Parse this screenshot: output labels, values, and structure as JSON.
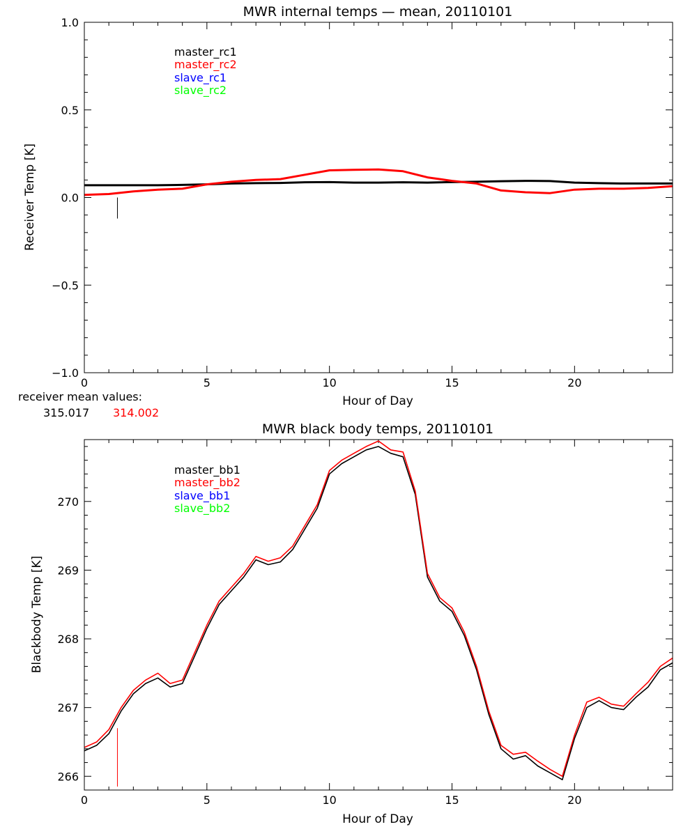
{
  "chart_data": [
    {
      "type": "line",
      "title": "MWR internal temps — mean, 20110101",
      "xlabel": "Hour of Day",
      "ylabel": "Receiver Temp [K]",
      "xlim": [
        0,
        24
      ],
      "ylim": [
        -1.0,
        1.0
      ],
      "xticks": [
        0,
        5,
        10,
        15,
        20
      ],
      "xtick_labels": [
        "0",
        "5",
        "10",
        "15",
        "20"
      ],
      "yticks": [
        -1.0,
        -0.5,
        0.0,
        0.5,
        1.0
      ],
      "ytick_labels": [
        "−1.0",
        "−0.5",
        "0.0",
        "0.5",
        "1.0"
      ],
      "grid": false,
      "legend_position": "top-left",
      "legend": [
        "master_rc1",
        "master_rc2",
        "slave_rc1",
        "slave_rc2"
      ],
      "legend_colors": [
        "#000000",
        "#ff0000",
        "#0000ff",
        "#00ff00"
      ],
      "series": [
        {
          "name": "master_rc1",
          "color": "#000000",
          "x": [
            0,
            1,
            2,
            3,
            4,
            5,
            6,
            7,
            8,
            9,
            10,
            11,
            12,
            13,
            14,
            15,
            16,
            17,
            18,
            19,
            20,
            21,
            22,
            23,
            24
          ],
          "y": [
            0.07,
            0.07,
            0.07,
            0.07,
            0.072,
            0.075,
            0.08,
            0.082,
            0.083,
            0.087,
            0.088,
            0.085,
            0.085,
            0.087,
            0.085,
            0.088,
            0.09,
            0.093,
            0.095,
            0.094,
            0.085,
            0.082,
            0.08,
            0.08,
            0.08
          ]
        },
        {
          "name": "master_rc2",
          "color": "#ff0000",
          "x": [
            0,
            1,
            2,
            3,
            4,
            5,
            6,
            7,
            8,
            9,
            10,
            11,
            12,
            13,
            14,
            15,
            16,
            17,
            18,
            19,
            20,
            21,
            22,
            23,
            24
          ],
          "y": [
            0.015,
            0.02,
            0.035,
            0.045,
            0.05,
            0.075,
            0.09,
            0.1,
            0.105,
            0.13,
            0.155,
            0.158,
            0.16,
            0.15,
            0.115,
            0.095,
            0.08,
            0.04,
            0.03,
            0.025,
            0.045,
            0.05,
            0.05,
            0.055,
            0.065
          ]
        }
      ],
      "spike": {
        "x": 1.35,
        "y_top": 0.0,
        "y_bottom": -0.12,
        "color": "#000000"
      }
    },
    {
      "type": "line",
      "title": "MWR black body temps, 20110101",
      "xlabel": "Hour of Day",
      "ylabel": "Blackbody Temp [K]",
      "xlim": [
        0,
        24
      ],
      "ylim": [
        265.8,
        270.9
      ],
      "xticks": [
        0,
        5,
        10,
        15,
        20
      ],
      "xtick_labels": [
        "0",
        "5",
        "10",
        "15",
        "20"
      ],
      "yticks": [
        266,
        267,
        268,
        269,
        270
      ],
      "ytick_labels": [
        "266",
        "267",
        "268",
        "269",
        "270"
      ],
      "grid": false,
      "legend_position": "top-left",
      "legend": [
        "master_bb1",
        "master_bb2",
        "slave_bb1",
        "slave_bb2"
      ],
      "legend_colors": [
        "#000000",
        "#ff0000",
        "#0000ff",
        "#00ff00"
      ],
      "series": [
        {
          "name": "master_bb1",
          "color": "#000000",
          "x": [
            0,
            0.5,
            1,
            1.5,
            2,
            2.5,
            3,
            3.5,
            4,
            4.5,
            5,
            5.5,
            6,
            6.5,
            7,
            7.5,
            8,
            8.5,
            9,
            9.5,
            10,
            10.5,
            11,
            11.5,
            12,
            12.5,
            13,
            13.5,
            14,
            14.5,
            15,
            15.5,
            16,
            16.5,
            17,
            17.5,
            18,
            18.5,
            19,
            19.5,
            20,
            20.5,
            21,
            21.5,
            22,
            22.5,
            23,
            23.5,
            24
          ],
          "y": [
            266.37,
            266.45,
            266.62,
            266.95,
            267.2,
            267.35,
            267.43,
            267.3,
            267.35,
            267.75,
            268.15,
            268.5,
            268.7,
            268.9,
            269.15,
            269.08,
            269.12,
            269.3,
            269.6,
            269.9,
            270.4,
            270.55,
            270.65,
            270.75,
            270.8,
            270.7,
            270.65,
            270.1,
            268.9,
            268.55,
            268.4,
            268.05,
            267.55,
            266.9,
            266.4,
            266.25,
            266.3,
            266.15,
            266.05,
            265.95,
            266.55,
            267.0,
            267.1,
            267.0,
            266.97,
            267.15,
            267.3,
            267.55,
            267.65
          ]
        },
        {
          "name": "master_bb2",
          "color": "#ff0000",
          "x": [
            0,
            0.5,
            1,
            1.5,
            2,
            2.5,
            3,
            3.5,
            4,
            4.5,
            5,
            5.5,
            6,
            6.5,
            7,
            7.5,
            8,
            8.5,
            9,
            9.5,
            10,
            10.5,
            11,
            11.5,
            12,
            12.5,
            13,
            13.5,
            14,
            14.5,
            15,
            15.5,
            16,
            16.5,
            17,
            17.5,
            18,
            18.5,
            19,
            19.5,
            20,
            20.5,
            21,
            21.5,
            22,
            22.5,
            23,
            23.5,
            24
          ],
          "y": [
            266.42,
            266.5,
            266.68,
            267.0,
            267.25,
            267.4,
            267.5,
            267.35,
            267.4,
            267.8,
            268.2,
            268.55,
            268.75,
            268.95,
            269.2,
            269.13,
            269.18,
            269.35,
            269.65,
            269.95,
            270.45,
            270.6,
            270.7,
            270.8,
            270.88,
            270.75,
            270.72,
            270.15,
            268.95,
            268.6,
            268.45,
            268.1,
            267.6,
            266.95,
            266.45,
            266.32,
            266.35,
            266.22,
            266.1,
            266.0,
            266.6,
            267.08,
            267.15,
            267.05,
            267.02,
            267.2,
            267.37,
            267.6,
            267.72
          ]
        }
      ],
      "spike": {
        "x": 1.35,
        "y_top": 266.7,
        "y_bottom": 265.85,
        "color": "#ff0000"
      }
    }
  ],
  "annotation": {
    "label": "receiver mean values:",
    "value1": "315.017",
    "value2": "314.002",
    "value1_color": "#000000",
    "value2_color": "#ff0000"
  }
}
